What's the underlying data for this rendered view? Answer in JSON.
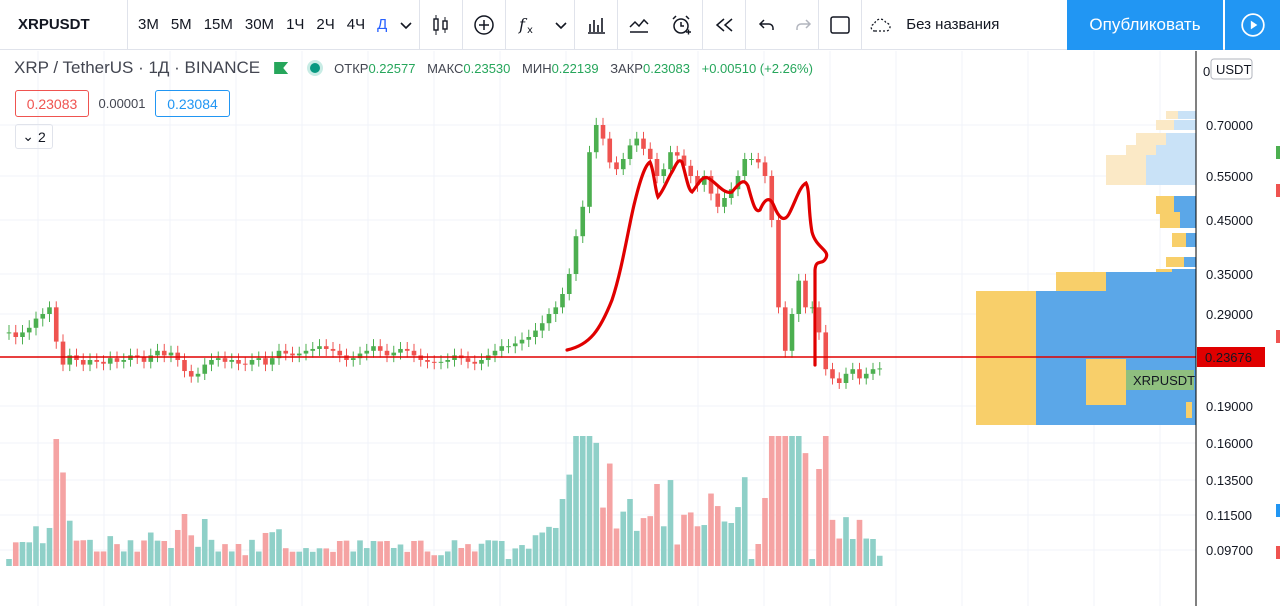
{
  "toolbar": {
    "symbol": "XRPUSDT",
    "timeframes": [
      "3М",
      "5М",
      "15М",
      "30М",
      "1Ч",
      "2Ч",
      "4Ч",
      "Д"
    ],
    "active_timeframe": "Д",
    "layout_name": "Без названия",
    "publish_label": "Опубликовать",
    "icons": [
      "chevron-down-icon",
      "candles-icon",
      "plus-circle-icon",
      "fx-icon",
      "chevron-down-icon",
      "bar-chart-icon",
      "templates-icon",
      "alarm-icon",
      "replay-icon",
      "undo-icon",
      "redo-icon",
      "fullscreen-icon",
      "cloud-icon",
      "play-icon"
    ]
  },
  "legend": {
    "title": "XRP / TetherUS · 1Д · BINANCE",
    "open_label": "ОТКР",
    "open": "0.22577",
    "high_label": "МАКС",
    "high": "0.23530",
    "low_label": "МИН",
    "low": "0.22139",
    "close_label": "ЗАКР",
    "close": "0.23083",
    "change": "+0.00510 (+2.26%)",
    "bid": "0.23083",
    "spread": "0.00001",
    "ask": "0.23084",
    "collapse_count": "2"
  },
  "price_axis": {
    "currency": "USDT",
    "ticks": [
      "0.70000",
      "0.55000",
      "0.45000",
      "0.35000",
      "0.29000",
      "0.19000",
      "0.16000",
      "0.13500",
      "0.11500",
      "0.09700"
    ],
    "last_price": "0.23676",
    "symbol_tag": "XRPUSDT",
    "zero_label": "0"
  },
  "colors": {
    "up": "#4caf50",
    "down": "#ef5350",
    "accent": "#2196f3",
    "price_line": "#e00000",
    "drawing": "#e00000",
    "vol_up": "#8fd0c8",
    "vol_down": "#f5a3a3",
    "vp_up": "#5ba7e8",
    "vp_down": "#f8cf6a"
  },
  "chart_data": {
    "type": "candlestick",
    "series": [
      {
        "name": "XRPUSDT",
        "close": [
          0.27,
          0.265,
          0.27,
          0.275,
          0.285,
          0.29,
          0.3,
          0.26,
          0.235,
          0.245,
          0.24,
          0.235,
          0.24,
          0.238,
          0.236,
          0.242,
          0.238,
          0.24,
          0.245,
          0.243,
          0.238,
          0.245,
          0.25,
          0.245,
          0.248,
          0.24,
          0.228,
          0.222,
          0.225,
          0.235,
          0.24,
          0.242,
          0.238,
          0.24,
          0.236,
          0.235,
          0.24,
          0.242,
          0.235,
          0.242,
          0.25,
          0.247,
          0.245,
          0.247,
          0.25,
          0.252,
          0.255,
          0.252,
          0.25,
          0.245,
          0.24,
          0.242,
          0.247,
          0.25,
          0.255,
          0.25,
          0.245,
          0.248,
          0.252,
          0.25,
          0.245,
          0.24,
          0.238,
          0.237,
          0.238,
          0.24,
          0.245,
          0.242,
          0.238,
          0.236,
          0.24,
          0.245,
          0.25,
          0.255,
          0.255,
          0.258,
          0.262,
          0.265,
          0.272,
          0.28,
          0.29,
          0.3,
          0.32,
          0.35,
          0.42,
          0.48,
          0.62,
          0.7,
          0.66,
          0.59,
          0.57,
          0.6,
          0.64,
          0.66,
          0.63,
          0.6,
          0.55,
          0.57,
          0.62,
          0.61,
          0.58,
          0.55,
          0.53,
          0.55,
          0.51,
          0.48,
          0.5,
          0.52,
          0.55,
          0.6,
          0.6,
          0.59,
          0.55,
          0.45,
          0.3,
          0.25,
          0.29,
          0.34,
          0.3,
          0.3,
          0.27,
          0.23,
          0.22,
          0.215,
          0.225,
          0.23,
          0.22,
          0.225,
          0.23,
          0.23083
        ]
      }
    ],
    "ylim": [
      0.097,
      0.7
    ],
    "price_line": 0.23676
  }
}
